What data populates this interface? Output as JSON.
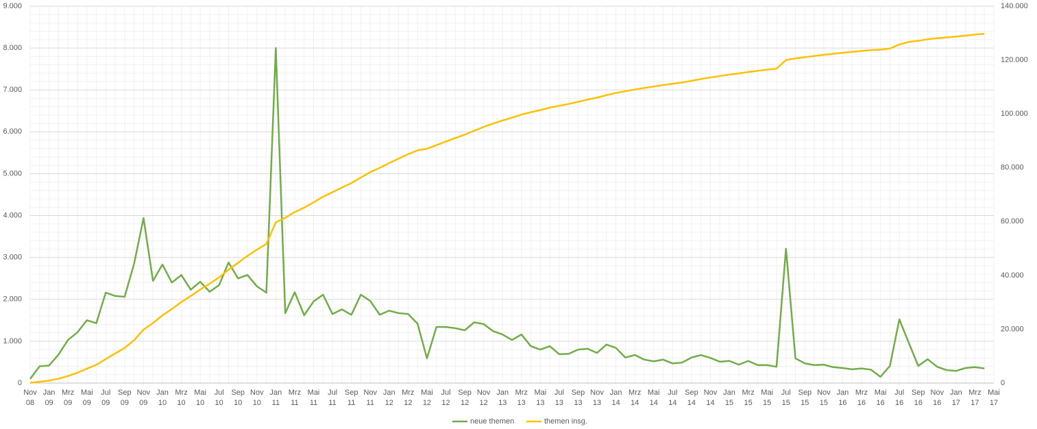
{
  "chart_data": {
    "type": "line",
    "categories": [
      "Nov 08",
      null,
      "Jan 09",
      null,
      "Mrz 09",
      null,
      "Mai 09",
      null,
      "Jul 09",
      null,
      "Sep 09",
      null,
      "Nov 09",
      null,
      "Jan 10",
      null,
      "Mrz 10",
      null,
      "Mai 10",
      null,
      "Jul 10",
      null,
      "Sep 10",
      null,
      "Nov 10",
      null,
      "Jan 11",
      null,
      "Mrz 11",
      null,
      "Mai 11",
      null,
      "Jul 11",
      null,
      "Sep 11",
      null,
      "Nov 11",
      null,
      "Jan 12",
      null,
      "Mrz 12",
      null,
      "Mai 12",
      null,
      "Jul 12",
      null,
      "Sep 12",
      null,
      "Nov 12",
      null,
      "Jan 13",
      null,
      "Mrz 13",
      null,
      "Mai 13",
      null,
      "Jul 13",
      null,
      "Sep 13",
      null,
      "Nov 13",
      null,
      "Jan 14",
      null,
      "Mrz 14",
      null,
      "Mai 14",
      null,
      "Jul 14",
      null,
      "Sep 14",
      null,
      "Nov 14",
      null,
      "Jan 15",
      null,
      "Mrz 15",
      null,
      "Mai 15",
      null,
      "Jul 15",
      null,
      "Sep 15",
      null,
      "Nov 15",
      null,
      "Jan 16",
      null,
      "Mrz 16",
      null,
      "Mai 16",
      null,
      "Jul 16",
      null,
      "Sep 16",
      null,
      "Nov 16",
      null,
      "Jan 17",
      null,
      "Mrz 17",
      null,
      "Mai 17"
    ],
    "series": [
      {
        "name": "neue themen",
        "color": "#70ad47",
        "values": [
          100,
          400,
          420,
          680,
          1030,
          1210,
          1500,
          1430,
          2160,
          2080,
          2060,
          2850,
          3940,
          2440,
          2830,
          2400,
          2580,
          2230,
          2420,
          2180,
          2340,
          2880,
          2500,
          2580,
          2310,
          2160,
          8000,
          1670,
          2170,
          1620,
          1950,
          2110,
          1650,
          1760,
          1630,
          2110,
          1960,
          1630,
          1730,
          1670,
          1650,
          1420,
          590,
          1340,
          1340,
          1310,
          1260,
          1450,
          1410,
          1240,
          1160,
          1030,
          1160,
          880,
          800,
          880,
          690,
          700,
          800,
          820,
          720,
          920,
          840,
          610,
          670,
          560,
          520,
          560,
          470,
          490,
          610,
          670,
          600,
          510,
          530,
          440,
          530,
          430,
          430,
          390,
          3210,
          590,
          470,
          430,
          440,
          380,
          360,
          330,
          350,
          320,
          150,
          410,
          1520,
          960,
          410,
          570,
          390,
          310,
          290,
          360,
          380,
          350,
          null
        ]
      },
      {
        "name": "themen insg.",
        "color": "#ffc000",
        "axis": "y2",
        "values": [
          100,
          500,
          920,
          1600,
          2630,
          3840,
          5340,
          6770,
          8930,
          11010,
          13070,
          15920,
          19860,
          22300,
          25130,
          27530,
          30110,
          32340,
          34760,
          36940,
          39280,
          42160,
          44660,
          47240,
          49550,
          51710,
          59710,
          61380,
          63550,
          65170,
          67120,
          69230,
          70880,
          72640,
          74270,
          76380,
          78340,
          79970,
          81700,
          83370,
          85020,
          86440,
          87030,
          88370,
          89710,
          91020,
          92280,
          93730,
          95140,
          96380,
          97540,
          98570,
          99730,
          100610,
          101410,
          102290,
          102980,
          103680,
          104480,
          105300,
          106020,
          106940,
          107780,
          108390,
          109060,
          109620,
          110140,
          110700,
          111170,
          111660,
          112270,
          112940,
          113540,
          114050,
          114580,
          115020,
          115550,
          115980,
          116410,
          116800,
          120010,
          120600,
          121070,
          121500,
          121940,
          122320,
          122680,
          123010,
          123360,
          123680,
          123830,
          124240,
          125760,
          126720,
          127130,
          127700,
          128090,
          128400,
          128690,
          129050,
          129430,
          129780,
          null
        ]
      }
    ],
    "ylim": [
      0,
      9000
    ],
    "yticks": [
      0,
      {
        "value": 1000,
        "label": "1.000"
      },
      {
        "value": 2000,
        "label": "2.000"
      },
      {
        "value": 3000,
        "label": "3.000"
      },
      {
        "value": 4000,
        "label": "4.000"
      },
      {
        "value": 5000,
        "label": "5.000"
      },
      {
        "value": 6000,
        "label": "6.000"
      },
      {
        "value": 7000,
        "label": "7.000"
      },
      {
        "value": 8000,
        "label": "8.000"
      },
      {
        "value": 9000,
        "label": "9.000"
      }
    ],
    "y2lim": [
      0,
      140000
    ],
    "y2ticks": [
      0,
      {
        "value": 20000,
        "label": "20.000"
      },
      {
        "value": 40000,
        "label": "40.000"
      },
      {
        "value": 60000,
        "label": "60.000"
      },
      {
        "value": 80000,
        "label": "80.000"
      },
      {
        "value": 100000,
        "label": "100.000"
      },
      {
        "value": 120000,
        "label": "120.000"
      },
      {
        "value": 140000,
        "label": "140.000"
      }
    ],
    "grid": true,
    "legend": "bottom"
  }
}
